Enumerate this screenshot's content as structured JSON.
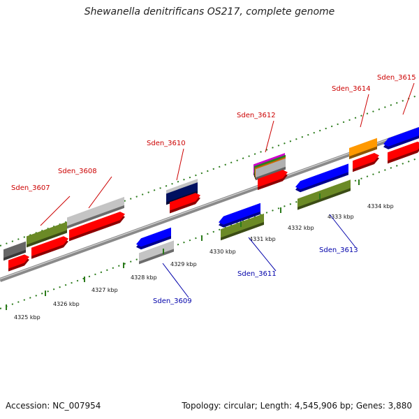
{
  "title": "Shewanella denitrificans OS217, complete genome",
  "footer": {
    "accession": "Accession: NC_007954",
    "summary": "Topology: circular; Length: 4,545,906 bp; Genes: 3,880"
  },
  "colors": {
    "forward_label": "#cc0000",
    "reverse_label": "#0000aa",
    "backbone": "#8a8a8a",
    "tick": "#2a7a1a"
  },
  "ticks": [
    {
      "label": "4325 kbp"
    },
    {
      "label": "4326 kbp"
    },
    {
      "label": "4327 kbp"
    },
    {
      "label": "4328 kbp"
    },
    {
      "label": "4329 kbp"
    },
    {
      "label": "4330 kbp"
    },
    {
      "label": "4331 kbp"
    },
    {
      "label": "4332 kbp"
    },
    {
      "label": "4333 kbp"
    },
    {
      "label": "4334 kbp"
    }
  ],
  "genes": [
    {
      "name": "Sden_3607",
      "strand": "+"
    },
    {
      "name": "Sden_3608",
      "strand": "+"
    },
    {
      "name": "Sden_3609",
      "strand": "-"
    },
    {
      "name": "Sden_3610",
      "strand": "+"
    },
    {
      "name": "Sden_3611",
      "strand": "-"
    },
    {
      "name": "Sden_3612",
      "strand": "+"
    },
    {
      "name": "Sden_3613",
      "strand": "-"
    },
    {
      "name": "Sden_3614",
      "strand": "+"
    },
    {
      "name": "Sden_3615",
      "strand": "+"
    }
  ]
}
